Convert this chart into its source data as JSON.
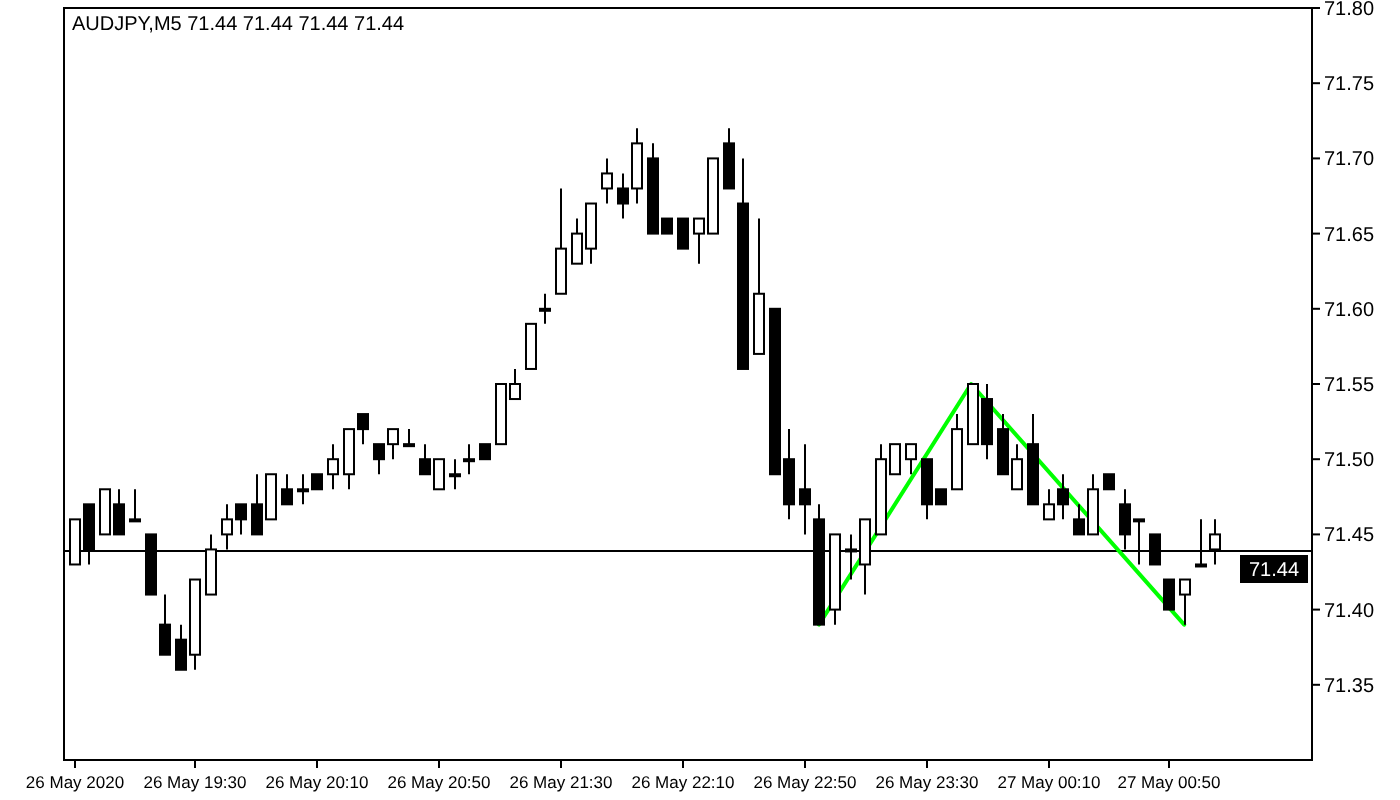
{
  "chart_data": {
    "type": "candlestick",
    "title": "AUDJPY,M5  71.44 71.44 71.44 71.44",
    "x": [
      "2020-05-26T18:50",
      "2020-05-26T18:55",
      "2020-05-26T19:00",
      "2020-05-26T19:05",
      "2020-05-26T19:10",
      "2020-05-26T19:15",
      "2020-05-26T19:20",
      "2020-05-26T19:25",
      "2020-05-26T19:30",
      "2020-05-26T19:35",
      "2020-05-26T19:40",
      "2020-05-26T19:45",
      "2020-05-26T19:50",
      "2020-05-26T19:55",
      "2020-05-26T20:00",
      "2020-05-26T20:05",
      "2020-05-26T20:10",
      "2020-05-26T20:15",
      "2020-05-26T20:20",
      "2020-05-26T20:25",
      "2020-05-26T20:30",
      "2020-05-26T20:35",
      "2020-05-26T20:40",
      "2020-05-26T20:45",
      "2020-05-26T20:50",
      "2020-05-26T20:55",
      "2020-05-26T21:00",
      "2020-05-26T21:05",
      "2020-05-26T21:10",
      "2020-05-26T21:15",
      "2020-05-26T21:20",
      "2020-05-26T21:25",
      "2020-05-26T21:30",
      "2020-05-26T21:35",
      "2020-05-26T21:40",
      "2020-05-26T21:45",
      "2020-05-26T21:50",
      "2020-05-26T21:55",
      "2020-05-26T22:00",
      "2020-05-26T22:05",
      "2020-05-26T22:10",
      "2020-05-26T22:15",
      "2020-05-26T22:20",
      "2020-05-26T22:25",
      "2020-05-26T22:30",
      "2020-05-26T22:35",
      "2020-05-26T22:40",
      "2020-05-26T22:45",
      "2020-05-26T22:50",
      "2020-05-26T22:55",
      "2020-05-26T23:00",
      "2020-05-26T23:05",
      "2020-05-26T23:10",
      "2020-05-26T23:15",
      "2020-05-26T23:20",
      "2020-05-26T23:25",
      "2020-05-26T23:30",
      "2020-05-26T23:35",
      "2020-05-26T23:40",
      "2020-05-26T23:45",
      "2020-05-26T23:50",
      "2020-05-26T23:55",
      "2020-05-27T00:00",
      "2020-05-27T00:05",
      "2020-05-27T00:10",
      "2020-05-27T00:15",
      "2020-05-27T00:20",
      "2020-05-27T00:25",
      "2020-05-27T00:30",
      "2020-05-27T00:35",
      "2020-05-27T00:40",
      "2020-05-27T00:45",
      "2020-05-27T00:50",
      "2020-05-27T00:55",
      "2020-05-27T01:00",
      "2020-05-27T01:05"
    ],
    "ohlc": [
      [
        71.43,
        71.46,
        71.43,
        71.46
      ],
      [
        71.47,
        71.47,
        71.43,
        71.44
      ],
      [
        71.45,
        71.48,
        71.45,
        71.48
      ],
      [
        71.47,
        71.48,
        71.45,
        71.45
      ],
      [
        71.46,
        71.48,
        71.46,
        71.46
      ],
      [
        71.45,
        71.45,
        71.41,
        71.41
      ],
      [
        71.39,
        71.41,
        71.37,
        71.37
      ],
      [
        71.38,
        71.39,
        71.36,
        71.36
      ],
      [
        71.37,
        71.42,
        71.36,
        71.42
      ],
      [
        71.41,
        71.45,
        71.41,
        71.44
      ],
      [
        71.45,
        71.47,
        71.44,
        71.46
      ],
      [
        71.47,
        71.47,
        71.45,
        71.46
      ],
      [
        71.47,
        71.49,
        71.45,
        71.45
      ],
      [
        71.46,
        71.49,
        71.46,
        71.49
      ],
      [
        71.48,
        71.49,
        71.47,
        71.47
      ],
      [
        71.48,
        71.49,
        71.47,
        71.48
      ],
      [
        71.49,
        71.49,
        71.48,
        71.48
      ],
      [
        71.49,
        71.51,
        71.48,
        71.5
      ],
      [
        71.49,
        71.52,
        71.48,
        71.52
      ],
      [
        71.53,
        71.53,
        71.51,
        71.52
      ],
      [
        71.51,
        71.51,
        71.49,
        71.5
      ],
      [
        71.51,
        71.52,
        71.5,
        71.52
      ],
      [
        71.51,
        71.52,
        71.51,
        71.51
      ],
      [
        71.5,
        71.51,
        71.49,
        71.49
      ],
      [
        71.48,
        71.5,
        71.48,
        71.5
      ],
      [
        71.49,
        71.5,
        71.48,
        71.49
      ],
      [
        71.5,
        71.51,
        71.49,
        71.5
      ],
      [
        71.51,
        71.51,
        71.5,
        71.5
      ],
      [
        71.51,
        71.55,
        71.51,
        71.55
      ],
      [
        71.54,
        71.56,
        71.54,
        71.55
      ],
      [
        71.56,
        71.59,
        71.56,
        71.59
      ],
      [
        71.6,
        71.61,
        71.59,
        71.6
      ],
      [
        71.61,
        71.68,
        71.61,
        71.64
      ],
      [
        71.63,
        71.66,
        71.63,
        71.65
      ],
      [
        71.64,
        71.67,
        71.63,
        71.67
      ],
      [
        71.68,
        71.7,
        71.67,
        71.69
      ],
      [
        71.68,
        71.69,
        71.66,
        71.67
      ],
      [
        71.68,
        71.72,
        71.67,
        71.71
      ],
      [
        71.7,
        71.71,
        71.65,
        71.65
      ],
      [
        71.66,
        71.66,
        71.65,
        71.65
      ],
      [
        71.66,
        71.66,
        71.64,
        71.64
      ],
      [
        71.65,
        71.66,
        71.63,
        71.66
      ],
      [
        71.65,
        71.7,
        71.65,
        71.7
      ],
      [
        71.71,
        71.72,
        71.68,
        71.68
      ],
      [
        71.67,
        71.7,
        71.56,
        71.56
      ],
      [
        71.57,
        71.66,
        71.57,
        71.61
      ],
      [
        71.6,
        71.6,
        71.49,
        71.49
      ],
      [
        71.5,
        71.52,
        71.46,
        71.47
      ],
      [
        71.48,
        71.51,
        71.45,
        71.47
      ],
      [
        71.46,
        71.47,
        71.39,
        71.39
      ],
      [
        71.4,
        71.45,
        71.39,
        71.45
      ],
      [
        71.44,
        71.45,
        71.42,
        71.44
      ],
      [
        71.43,
        71.46,
        71.41,
        71.46
      ],
      [
        71.45,
        71.51,
        71.45,
        71.5
      ],
      [
        71.49,
        71.51,
        71.49,
        71.51
      ],
      [
        71.5,
        71.51,
        71.49,
        71.51
      ],
      [
        71.5,
        71.5,
        71.46,
        71.47
      ],
      [
        71.48,
        71.48,
        71.47,
        71.47
      ],
      [
        71.48,
        71.53,
        71.48,
        71.52
      ],
      [
        71.51,
        71.55,
        71.51,
        71.55
      ],
      [
        71.54,
        71.55,
        71.5,
        71.51
      ],
      [
        71.52,
        71.53,
        71.49,
        71.49
      ],
      [
        71.48,
        71.51,
        71.48,
        71.5
      ],
      [
        71.51,
        71.53,
        71.47,
        71.47
      ],
      [
        71.46,
        71.48,
        71.46,
        71.47
      ],
      [
        71.48,
        71.49,
        71.46,
        71.47
      ],
      [
        71.46,
        71.47,
        71.45,
        71.45
      ],
      [
        71.45,
        71.49,
        71.45,
        71.48
      ],
      [
        71.49,
        71.49,
        71.48,
        71.48
      ],
      [
        71.47,
        71.48,
        71.44,
        71.45
      ],
      [
        71.46,
        71.46,
        71.43,
        71.46
      ],
      [
        71.45,
        71.45,
        71.43,
        71.43
      ],
      [
        71.42,
        71.42,
        71.4,
        71.4
      ],
      [
        71.41,
        71.42,
        71.39,
        71.42
      ],
      [
        71.43,
        71.46,
        71.43,
        71.43
      ],
      [
        71.44,
        71.46,
        71.43,
        71.45
      ]
    ],
    "series": [
      {
        "type": "line",
        "color": "#00ff00",
        "x": [
          "2020-05-26T22:55",
          "2020-05-26T23:45",
          "2020-05-27T00:55"
        ],
        "values": [
          71.39,
          71.55,
          71.39
        ]
      }
    ],
    "xlim": [
      "2020-05-26T18:47",
      "2020-05-27T01:37"
    ],
    "xticks": [
      {
        "value": "2020-05-26T18:50",
        "label": "26 May 2020"
      },
      {
        "value": "2020-05-26T19:30",
        "label": "26 May 19:30"
      },
      {
        "value": "2020-05-26T20:10",
        "label": "26 May 20:10"
      },
      {
        "value": "2020-05-26T20:50",
        "label": "26 May 20:50"
      },
      {
        "value": "2020-05-26T21:30",
        "label": "26 May 21:30"
      },
      {
        "value": "2020-05-26T22:10",
        "label": "26 May 22:10"
      },
      {
        "value": "2020-05-26T22:50",
        "label": "26 May 22:50"
      },
      {
        "value": "2020-05-26T23:30",
        "label": "26 May 23:30"
      },
      {
        "value": "2020-05-27T00:10",
        "label": "27 May 00:10"
      },
      {
        "value": "2020-05-27T00:50",
        "label": "27 May 00:50"
      }
    ],
    "ylim": [
      71.3,
      71.8
    ],
    "yticks": [
      {
        "value": 71.35,
        "label": "71.35"
      },
      {
        "value": 71.4,
        "label": "71.40"
      },
      {
        "value": 71.45,
        "label": "71.45"
      },
      {
        "value": 71.5,
        "label": "71.50"
      },
      {
        "value": 71.55,
        "label": "71.55"
      },
      {
        "value": 71.6,
        "label": "71.60"
      },
      {
        "value": 71.65,
        "label": "71.65"
      },
      {
        "value": 71.7,
        "label": "71.70"
      },
      {
        "value": 71.75,
        "label": "71.75"
      },
      {
        "value": 71.8,
        "label": "71.80"
      }
    ],
    "ref_lines": [
      {
        "axis": "y",
        "value": 71.44,
        "label": "71.44",
        "color": "#000000"
      }
    ]
  }
}
